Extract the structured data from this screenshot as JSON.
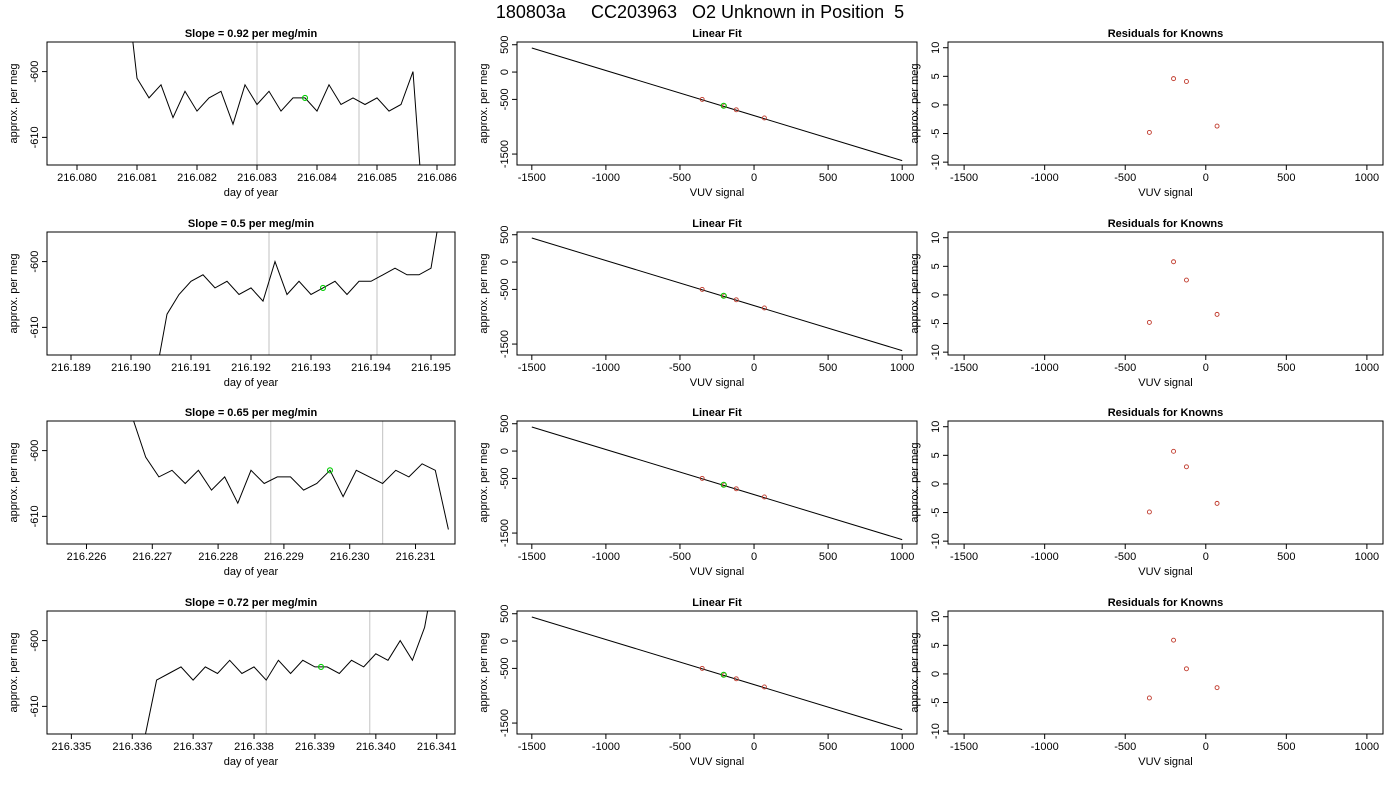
{
  "page_title": "180803a     CC203963   O2 Unknown in Position  5",
  "chart_data": [
    {
      "type": "line",
      "title": "Slope =  0.92  per meg/min",
      "xlabel": "day of year",
      "ylabel": "approx. per meg",
      "xlim": [
        216.0795,
        216.0863
      ],
      "ylim": [
        -614.2,
        -595.5
      ],
      "xticks": [
        "216.080",
        "216.081",
        "216.082",
        "216.083",
        "216.084",
        "216.085",
        "216.086"
      ],
      "yticks": [
        "-600",
        "-610"
      ],
      "vlines": [
        216.083,
        216.0847
      ],
      "x": [
        216.0808,
        216.081,
        216.0812,
        216.0814,
        216.0816,
        216.0818,
        216.082,
        216.0822,
        216.0824,
        216.0826,
        216.0828,
        216.083,
        216.0832,
        216.0834,
        216.0836,
        216.0838,
        216.084,
        216.0842,
        216.0844,
        216.0846,
        216.0848,
        216.085,
        216.0852,
        216.0854,
        216.0856,
        216.0858
      ],
      "y": [
        -585,
        -601,
        -604,
        -602,
        -607,
        -603,
        -606,
        -604,
        -603,
        -608,
        -602,
        -605,
        -603,
        -606,
        -604,
        -604,
        -606,
        -602,
        -605,
        -604,
        -605,
        -604,
        -606,
        -605,
        -600,
        -625
      ],
      "highlight": {
        "x": 216.0838,
        "y": -604
      }
    },
    {
      "type": "scatter",
      "title": "Linear Fit",
      "xlabel": "VUV signal",
      "ylabel": "approx. per meg",
      "xlim": [
        -1600,
        1100
      ],
      "ylim": [
        -1700,
        550
      ],
      "xticks": [
        "-1500",
        "-1000",
        "-500",
        "0",
        "500",
        "1000"
      ],
      "yticks": [
        "500",
        "0",
        "-500",
        "-1500"
      ],
      "fit": {
        "x": [
          -1500,
          1000
        ],
        "y": [
          440,
          -1620
        ]
      },
      "points": {
        "x": [
          -350,
          -200,
          -120,
          70
        ],
        "y": [
          -500,
          -620,
          -690,
          -840
        ]
      },
      "highlight": {
        "x": -205,
        "y": -616
      }
    },
    {
      "type": "scatter",
      "title": "Residuals for Knowns",
      "xlabel": "VUV signal",
      "ylabel": "approx. per meg",
      "xlim": [
        -1600,
        1100
      ],
      "ylim": [
        -10.5,
        11
      ],
      "xticks": [
        "-1500",
        "-1000",
        "-500",
        "0",
        "500",
        "1000"
      ],
      "yticks": [
        "10",
        "5",
        "0",
        "-5",
        "-10"
      ],
      "points": {
        "x": [
          -350,
          -200,
          -120,
          70
        ],
        "y": [
          -4.8,
          4.6,
          4.1,
          -3.7
        ]
      }
    },
    {
      "type": "line",
      "title": "Slope =  0.5  per meg/min",
      "xlabel": "day of year",
      "ylabel": "approx. per meg",
      "xlim": [
        216.1886,
        216.1954
      ],
      "ylim": [
        -614.2,
        -595.5
      ],
      "xticks": [
        "216.189",
        "216.190",
        "216.191",
        "216.192",
        "216.193",
        "216.194",
        "216.195"
      ],
      "yticks": [
        "-600",
        "-610"
      ],
      "vlines": [
        216.1923,
        216.1941
      ],
      "x": [
        216.1904,
        216.1906,
        216.1908,
        216.191,
        216.1912,
        216.1914,
        216.1916,
        216.1918,
        216.192,
        216.1922,
        216.1924,
        216.1926,
        216.1928,
        216.193,
        216.1932,
        216.1934,
        216.1936,
        216.1938,
        216.194,
        216.1942,
        216.1944,
        216.1946,
        216.1948,
        216.195,
        216.1952
      ],
      "y": [
        -618,
        -608,
        -605,
        -603,
        -602,
        -604,
        -603,
        -605,
        -604,
        -606,
        -600,
        -605,
        -603,
        -605,
        -604,
        -603,
        -605,
        -603,
        -603,
        -602,
        -601,
        -602,
        -602,
        -601,
        -590
      ],
      "highlight": {
        "x": 216.1932,
        "y": -604
      }
    },
    {
      "type": "scatter",
      "title": "Linear Fit",
      "xlabel": "VUV signal",
      "ylabel": "approx. per meg",
      "xlim": [
        -1600,
        1100
      ],
      "ylim": [
        -1700,
        550
      ],
      "xticks": [
        "-1500",
        "-1000",
        "-500",
        "0",
        "500",
        "1000"
      ],
      "yticks": [
        "500",
        "0",
        "-500",
        "-1500"
      ],
      "fit": {
        "x": [
          -1500,
          1000
        ],
        "y": [
          440,
          -1620
        ]
      },
      "points": {
        "x": [
          -350,
          -200,
          -120,
          70
        ],
        "y": [
          -500,
          -620,
          -690,
          -840
        ]
      },
      "highlight": {
        "x": -205,
        "y": -616
      }
    },
    {
      "type": "scatter",
      "title": "Residuals for Knowns",
      "xlabel": "VUV signal",
      "ylabel": "approx. per meg",
      "xlim": [
        -1600,
        1100
      ],
      "ylim": [
        -10.5,
        11
      ],
      "xticks": [
        "-1500",
        "-1000",
        "-500",
        "0",
        "500",
        "1000"
      ],
      "yticks": [
        "10",
        "5",
        "0",
        "-5",
        "-10"
      ],
      "points": {
        "x": [
          -350,
          -200,
          -120,
          70
        ],
        "y": [
          -4.8,
          5.8,
          2.6,
          -3.4
        ]
      }
    },
    {
      "type": "line",
      "title": "Slope =  0.65  per meg/min",
      "xlabel": "day of year",
      "ylabel": "approx. per meg",
      "xlim": [
        216.2254,
        216.2316
      ],
      "ylim": [
        -614.2,
        -595.5
      ],
      "xticks": [
        "216.226",
        "216.227",
        "216.228",
        "216.229",
        "216.230",
        "216.231"
      ],
      "yticks": [
        "-600",
        "-610"
      ],
      "vlines": [
        216.2288,
        216.2305
      ],
      "x": [
        216.2267,
        216.2269,
        216.2271,
        216.2273,
        216.2275,
        216.2277,
        216.2279,
        216.2281,
        216.2283,
        216.2285,
        216.2287,
        216.2289,
        216.2291,
        216.2293,
        216.2295,
        216.2297,
        216.2299,
        216.2301,
        216.2303,
        216.2305,
        216.2307,
        216.2309,
        216.2311,
        216.2313,
        216.2315
      ],
      "y": [
        -595,
        -601,
        -604,
        -603,
        -605,
        -603,
        -606,
        -604,
        -608,
        -603,
        -605,
        -604,
        -604,
        -606,
        -605,
        -603,
        -607,
        -603,
        -604,
        -605,
        -603,
        -604,
        -602,
        -603,
        -612
      ],
      "highlight": {
        "x": 216.2297,
        "y": -603
      }
    },
    {
      "type": "scatter",
      "title": "Linear Fit",
      "xlabel": "VUV signal",
      "ylabel": "approx. per meg",
      "xlim": [
        -1600,
        1100
      ],
      "ylim": [
        -1700,
        550
      ],
      "xticks": [
        "-1500",
        "-1000",
        "-500",
        "0",
        "500",
        "1000"
      ],
      "yticks": [
        "500",
        "0",
        "-500",
        "-1500"
      ],
      "fit": {
        "x": [
          -1500,
          1000
        ],
        "y": [
          440,
          -1620
        ]
      },
      "points": {
        "x": [
          -350,
          -200,
          -120,
          70
        ],
        "y": [
          -500,
          -620,
          -690,
          -840
        ]
      },
      "highlight": {
        "x": -205,
        "y": -616
      }
    },
    {
      "type": "scatter",
      "title": "Residuals for Knowns",
      "xlabel": "VUV signal",
      "ylabel": "approx. per meg",
      "xlim": [
        -1600,
        1100
      ],
      "ylim": [
        -10.5,
        11
      ],
      "xticks": [
        "-1500",
        "-1000",
        "-500",
        "0",
        "500",
        "1000"
      ],
      "yticks": [
        "10",
        "5",
        "0",
        "-5",
        "-10"
      ],
      "points": {
        "x": [
          -350,
          -200,
          -120,
          70
        ],
        "y": [
          -4.9,
          5.7,
          3.0,
          -3.4
        ]
      }
    },
    {
      "type": "line",
      "title": "Slope =  0.72  per meg/min",
      "xlabel": "day of year",
      "ylabel": "approx. per meg",
      "xlim": [
        216.3346,
        216.3413
      ],
      "ylim": [
        -614.2,
        -595.5
      ],
      "xticks": [
        "216.335",
        "216.336",
        "216.337",
        "216.338",
        "216.339",
        "216.340",
        "216.341"
      ],
      "yticks": [
        "-600",
        "-610"
      ],
      "vlines": [
        216.3382,
        216.3399
      ],
      "x": [
        216.3362,
        216.3364,
        216.3366,
        216.3368,
        216.337,
        216.3372,
        216.3374,
        216.3376,
        216.3378,
        216.338,
        216.3382,
        216.3384,
        216.3386,
        216.3388,
        216.339,
        216.3392,
        216.3394,
        216.3396,
        216.3398,
        216.34,
        216.3402,
        216.3404,
        216.3406,
        216.3408,
        216.3409
      ],
      "y": [
        -615,
        -606,
        -605,
        -604,
        -606,
        -604,
        -605,
        -603,
        -605,
        -604,
        -606,
        -603,
        -605,
        -603,
        -604,
        -604,
        -605,
        -603,
        -604,
        -602,
        -603,
        -600,
        -603,
        -598,
        -593
      ],
      "highlight": {
        "x": 216.3391,
        "y": -604
      }
    },
    {
      "type": "scatter",
      "title": "Linear Fit",
      "xlabel": "VUV signal",
      "ylabel": "approx. per meg",
      "xlim": [
        -1600,
        1100
      ],
      "ylim": [
        -1700,
        550
      ],
      "xticks": [
        "-1500",
        "-1000",
        "-500",
        "0",
        "500",
        "1000"
      ],
      "yticks": [
        "500",
        "0",
        "-500",
        "-1500"
      ],
      "fit": {
        "x": [
          -1500,
          1000
        ],
        "y": [
          440,
          -1620
        ]
      },
      "points": {
        "x": [
          -350,
          -200,
          -120,
          70
        ],
        "y": [
          -500,
          -620,
          -690,
          -840
        ]
      },
      "highlight": {
        "x": -205,
        "y": -616
      }
    },
    {
      "type": "scatter",
      "title": "Residuals for Knowns",
      "xlabel": "VUV signal",
      "ylabel": "approx. per meg",
      "xlim": [
        -1600,
        1100
      ],
      "ylim": [
        -10.5,
        11
      ],
      "xticks": [
        "-1500",
        "-1000",
        "-500",
        "0",
        "500",
        "1000"
      ],
      "yticks": [
        "10",
        "5",
        "0",
        "-5",
        "-10"
      ],
      "points": {
        "x": [
          -350,
          -200,
          -120,
          70
        ],
        "y": [
          -4.2,
          5.9,
          0.9,
          -2.4
        ]
      }
    }
  ]
}
